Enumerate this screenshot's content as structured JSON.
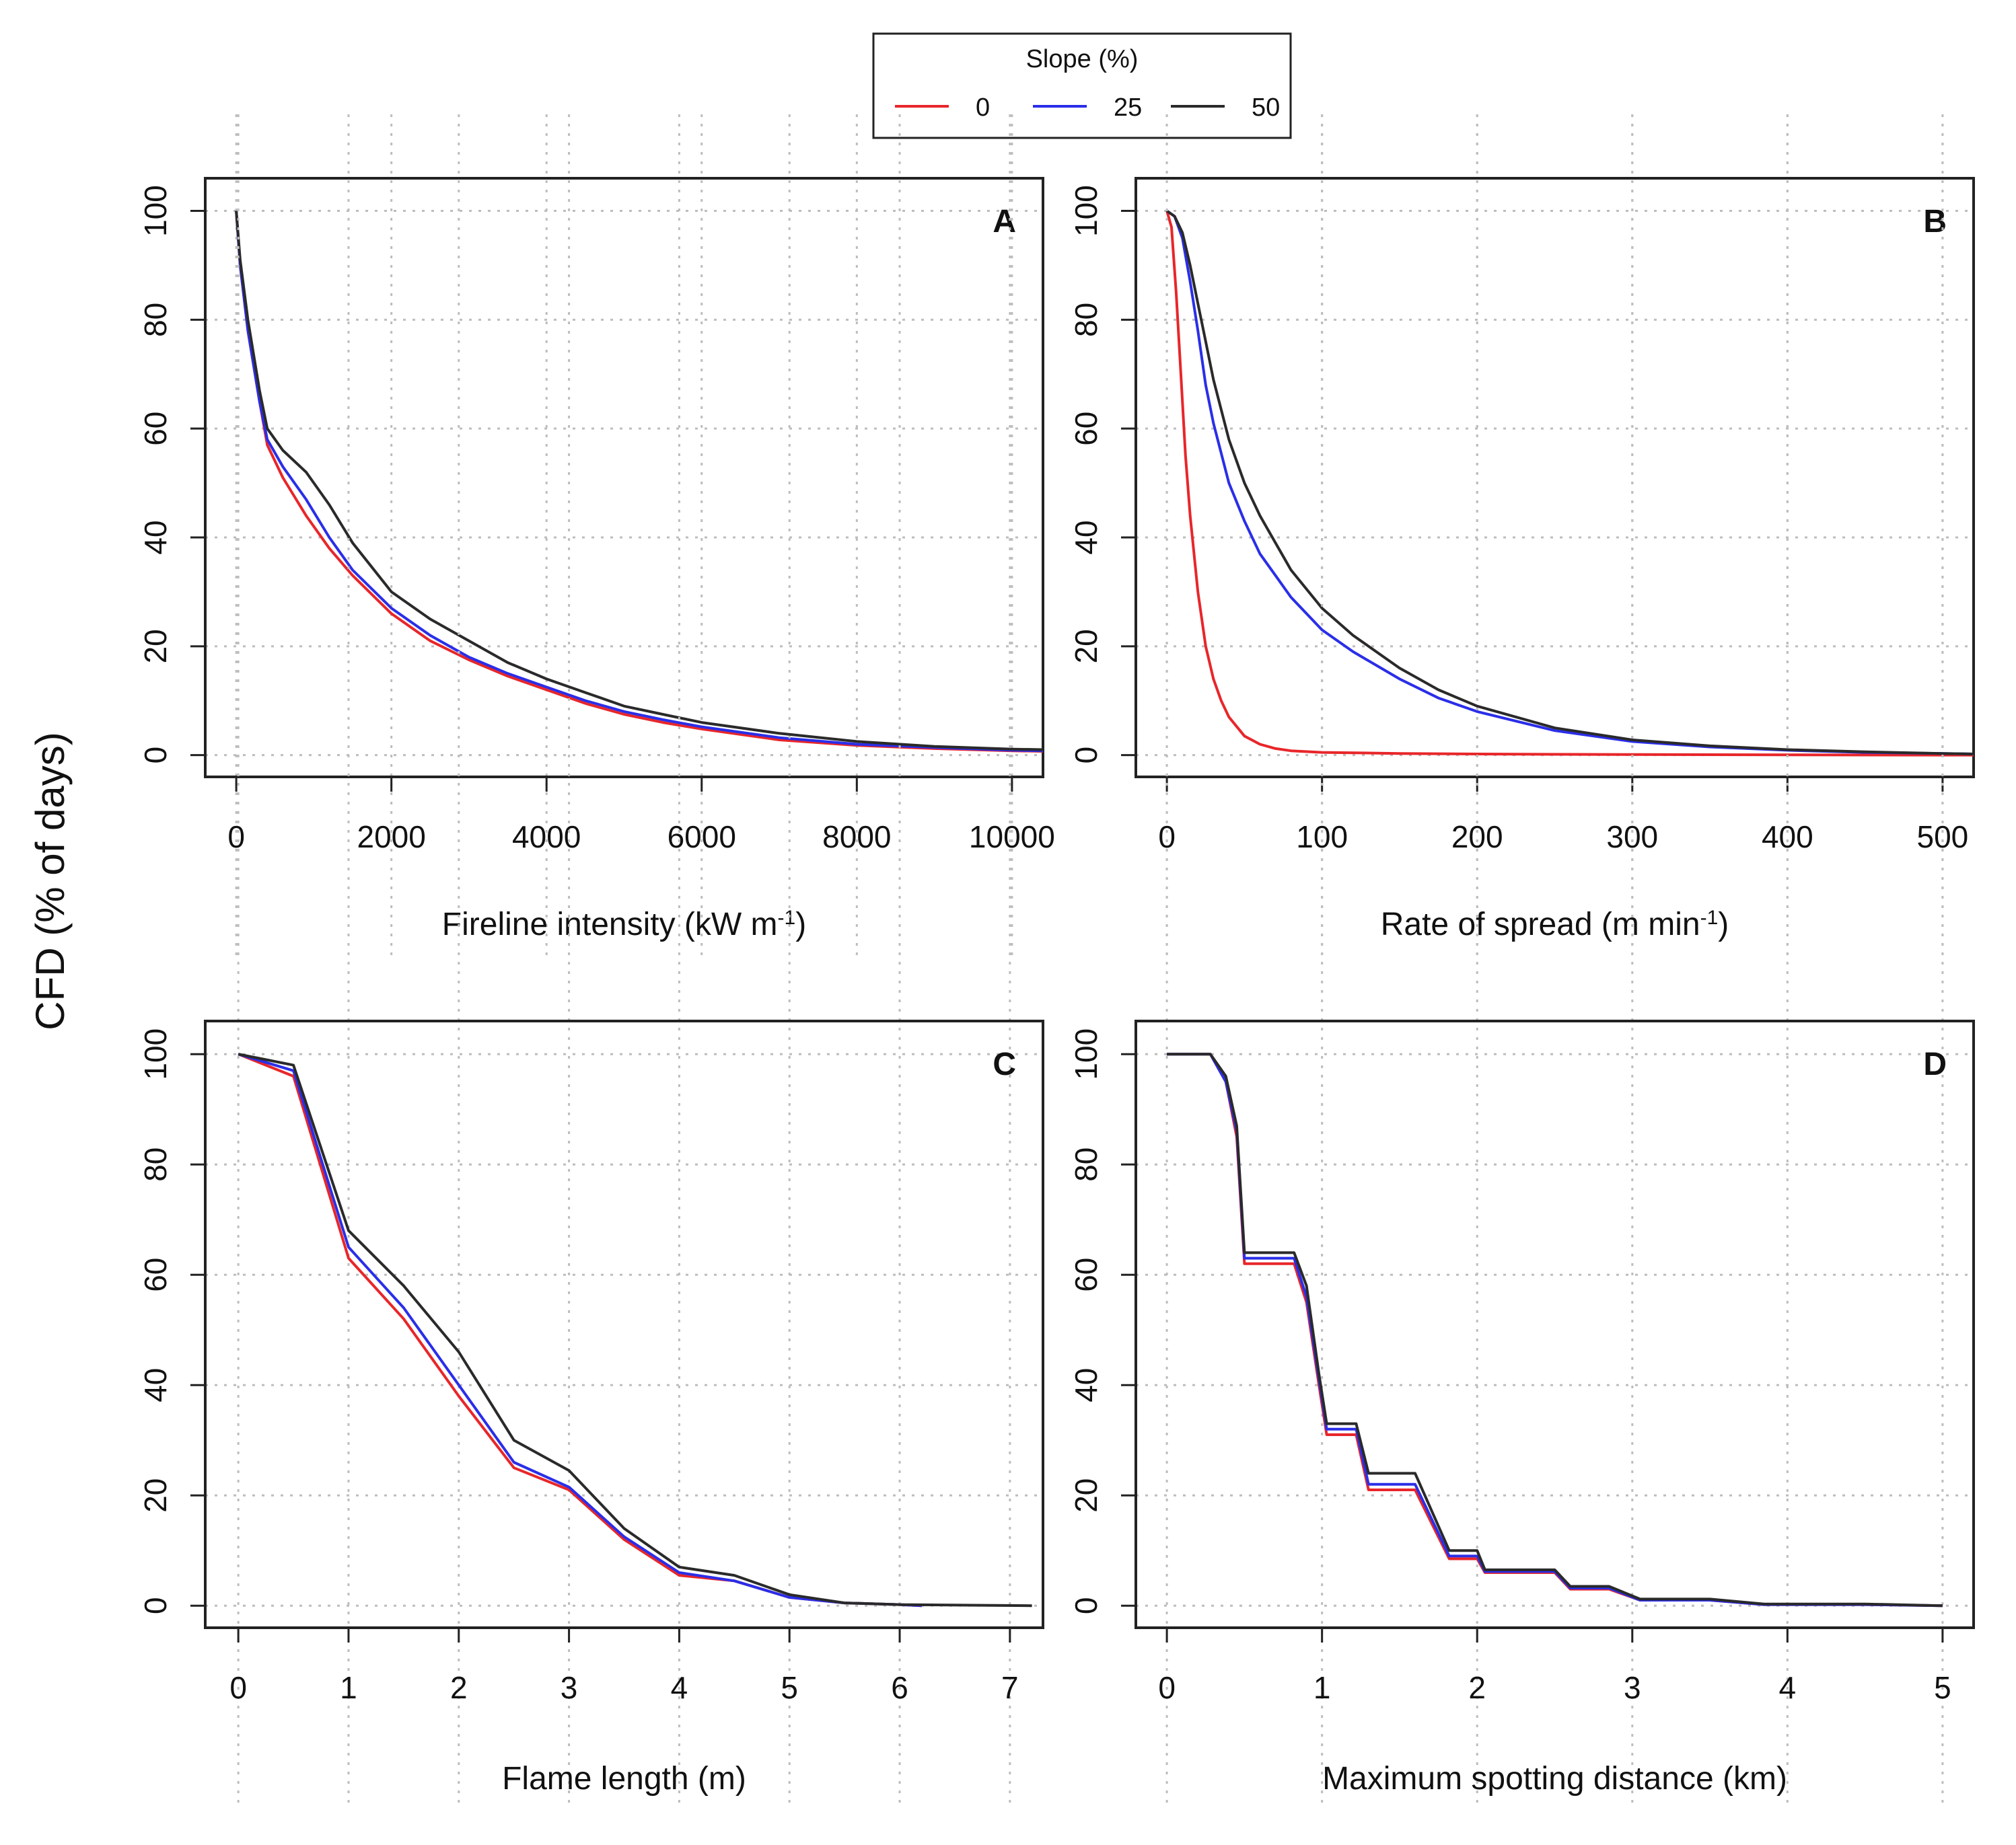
{
  "figure": {
    "ylabel": "CFD (% of days)",
    "legend": {
      "title": "Slope (%)",
      "placement": "top-center",
      "entries": [
        {
          "label": "0",
          "color": "#e8262a"
        },
        {
          "label": "25",
          "color": "#2a2ee8"
        },
        {
          "label": "50",
          "color": "#2a2a2a"
        }
      ]
    }
  },
  "chart_data": [
    {
      "type": "line",
      "panel": "A",
      "xlabel": "Fireline intensity (kW m",
      "xlabel_sup": "-1",
      "xlabel_close": ")",
      "xlim": [
        -400,
        10400
      ],
      "ylim": [
        -4,
        106
      ],
      "xticks": [
        0,
        2000,
        4000,
        6000,
        8000,
        10000
      ],
      "yticks": [
        0,
        20,
        40,
        60,
        80,
        100
      ],
      "grid": true,
      "series": [
        {
          "name": "0",
          "x": [
            0,
            50,
            150,
            300,
            400,
            600,
            900,
            1200,
            1500,
            2000,
            2500,
            3000,
            3500,
            4000,
            4500,
            5000,
            5500,
            6000,
            7000,
            8000,
            9000,
            10000,
            10400
          ],
          "y": [
            100,
            90,
            78,
            65,
            57,
            51,
            44,
            38,
            33,
            26,
            21,
            17.5,
            14.5,
            12,
            9.5,
            7.5,
            6,
            4.8,
            2.8,
            1.8,
            1.2,
            0.8,
            0.7
          ]
        },
        {
          "name": "25",
          "x": [
            0,
            50,
            150,
            300,
            400,
            600,
            900,
            1200,
            1500,
            2000,
            2500,
            3000,
            3500,
            4000,
            4500,
            5000,
            5500,
            6000,
            7000,
            8000,
            9000,
            10000,
            10400
          ],
          "y": [
            100,
            90,
            78,
            65,
            58,
            53,
            47,
            40,
            34,
            27,
            22,
            18,
            15,
            12.5,
            10,
            8,
            6.5,
            5.2,
            3.2,
            2,
            1.4,
            0.9,
            0.8
          ]
        },
        {
          "name": "50",
          "x": [
            0,
            50,
            150,
            300,
            400,
            600,
            900,
            1200,
            1500,
            2000,
            2500,
            3000,
            3500,
            4000,
            4500,
            5000,
            5500,
            6000,
            7000,
            8000,
            9000,
            10000,
            10400
          ],
          "y": [
            100,
            91,
            80,
            67,
            60,
            56,
            52,
            46,
            39,
            30,
            25,
            21,
            17,
            14,
            11.5,
            9,
            7.5,
            6,
            4,
            2.5,
            1.6,
            1.1,
            1
          ]
        }
      ]
    },
    {
      "type": "line",
      "panel": "B",
      "xlabel": "Rate of spread (m min",
      "xlabel_sup": "-1",
      "xlabel_close": ")",
      "xlim": [
        -20,
        520
      ],
      "ylim": [
        -4,
        106
      ],
      "xticks": [
        0,
        100,
        200,
        300,
        400,
        500
      ],
      "yticks": [
        0,
        20,
        40,
        60,
        80,
        100
      ],
      "grid": true,
      "series": [
        {
          "name": "0",
          "x": [
            0,
            3,
            6,
            9,
            12,
            15,
            20,
            25,
            30,
            35,
            40,
            50,
            60,
            70,
            80,
            100,
            150,
            200,
            300,
            400,
            500,
            520
          ],
          "y": [
            100,
            97,
            85,
            70,
            55,
            44,
            30,
            20,
            14,
            10,
            7,
            3.5,
            2,
            1.2,
            0.8,
            0.5,
            0.3,
            0.2,
            0.1,
            0.05,
            0,
            0
          ]
        },
        {
          "name": "25",
          "x": [
            0,
            5,
            10,
            15,
            20,
            25,
            30,
            40,
            50,
            60,
            70,
            80,
            100,
            120,
            150,
            175,
            200,
            250,
            300,
            350,
            400,
            450,
            500,
            520
          ],
          "y": [
            100,
            99,
            95,
            87,
            78,
            68,
            61,
            50,
            43,
            37,
            33,
            29,
            23,
            19,
            14,
            10.5,
            8,
            4.5,
            2.5,
            1.5,
            0.9,
            0.5,
            0.3,
            0.2
          ]
        },
        {
          "name": "50",
          "x": [
            0,
            5,
            10,
            15,
            20,
            25,
            30,
            40,
            50,
            60,
            70,
            80,
            100,
            120,
            150,
            175,
            200,
            250,
            300,
            350,
            400,
            450,
            500,
            520
          ],
          "y": [
            100,
            99,
            96,
            90,
            83,
            76,
            69,
            58,
            50,
            44,
            39,
            34,
            27,
            22,
            16,
            12,
            9,
            5,
            2.8,
            1.7,
            1,
            0.6,
            0.3,
            0.2
          ]
        }
      ]
    },
    {
      "type": "line",
      "panel": "C",
      "xlabel": "Flame length (m)",
      "xlabel_sup": "",
      "xlabel_close": "",
      "xlim": [
        -0.3,
        7.3
      ],
      "ylim": [
        -4,
        106
      ],
      "xticks": [
        0,
        1,
        2,
        3,
        4,
        5,
        6,
        7
      ],
      "yticks": [
        0,
        20,
        40,
        60,
        80,
        100
      ],
      "grid": true,
      "series": [
        {
          "name": "0",
          "x": [
            0,
            0.5,
            1,
            1.5,
            2,
            2.5,
            3,
            3.5,
            4,
            4.5,
            5,
            5.5,
            6,
            6.2
          ],
          "y": [
            100,
            96,
            63,
            52,
            38,
            25,
            21,
            12,
            5.5,
            4.5,
            1.5,
            0.5,
            0.2,
            0
          ]
        },
        {
          "name": "25",
          "x": [
            0,
            0.5,
            1,
            1.5,
            2,
            2.5,
            3,
            3.5,
            4,
            4.5,
            5,
            5.5,
            6,
            6.2
          ],
          "y": [
            100,
            97,
            65,
            54,
            40,
            26,
            21.5,
            12.5,
            6,
            4.5,
            1.5,
            0.5,
            0.2,
            0
          ]
        },
        {
          "name": "50",
          "x": [
            0,
            0.5,
            1,
            1.5,
            2,
            2.5,
            3,
            3.5,
            4,
            4.5,
            5,
            5.5,
            6,
            7.2
          ],
          "y": [
            100,
            98,
            68,
            58,
            46,
            30,
            24.5,
            14,
            7,
            5.5,
            2,
            0.5,
            0.2,
            0
          ]
        }
      ]
    },
    {
      "type": "line",
      "panel": "D",
      "xlabel": "Maximum spotting distance (km)",
      "xlabel_sup": "",
      "xlabel_close": "",
      "xlim": [
        -0.2,
        5.2
      ],
      "ylim": [
        -4,
        106
      ],
      "xticks": [
        0,
        1,
        2,
        3,
        4,
        5
      ],
      "yticks": [
        0,
        20,
        40,
        60,
        80,
        100
      ],
      "grid": true,
      "series": [
        {
          "name": "0",
          "x": [
            0,
            0.28,
            0.38,
            0.45,
            0.5,
            0.82,
            0.9,
            0.98,
            1.03,
            1.22,
            1.3,
            1.6,
            1.82,
            2.0,
            2.05,
            2.5,
            2.6,
            2.85,
            3.05,
            3.5,
            3.85,
            4.5,
            5.0
          ],
          "y": [
            100,
            100,
            95,
            85,
            62,
            62,
            55,
            40,
            31,
            31,
            21,
            21,
            8.5,
            8.5,
            6,
            6,
            3,
            3,
            1,
            1,
            0.2,
            0.2,
            0
          ]
        },
        {
          "name": "25",
          "x": [
            0,
            0.28,
            0.38,
            0.45,
            0.5,
            0.82,
            0.9,
            0.98,
            1.03,
            1.22,
            1.3,
            1.6,
            1.82,
            2.0,
            2.05,
            2.5,
            2.6,
            2.85,
            3.05,
            3.5,
            3.85,
            4.5,
            5.0
          ],
          "y": [
            100,
            100,
            95,
            86,
            63,
            63,
            56,
            41,
            32,
            32,
            22,
            22,
            9,
            9,
            6.2,
            6.2,
            3.2,
            3.2,
            1,
            1,
            0.2,
            0.2,
            0
          ]
        },
        {
          "name": "50",
          "x": [
            0,
            0.28,
            0.38,
            0.45,
            0.5,
            0.82,
            0.9,
            0.98,
            1.03,
            1.22,
            1.3,
            1.6,
            1.82,
            2.0,
            2.05,
            2.5,
            2.6,
            2.85,
            3.05,
            3.5,
            3.85,
            4.5,
            5.0
          ],
          "y": [
            100,
            100,
            96,
            87,
            64,
            64,
            58,
            42,
            33,
            33,
            24,
            24,
            10,
            10,
            6.5,
            6.5,
            3.5,
            3.5,
            1.2,
            1.2,
            0.3,
            0.3,
            0
          ]
        }
      ]
    }
  ]
}
